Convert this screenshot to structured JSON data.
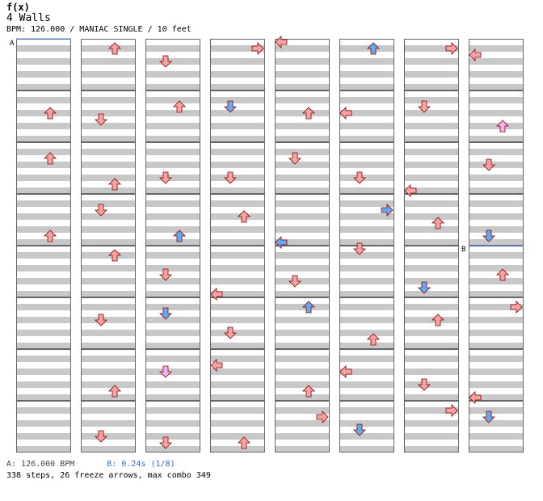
{
  "song": {
    "title": "f(x)",
    "artist": "4 Walls",
    "info": "BPM: 126.000 / MANIAC SINGLE / 10 feet"
  },
  "markers": {
    "a": "A",
    "b": "B"
  },
  "footer": {
    "bpm_a": "A: 126.000 BPM",
    "bpm_b": "B: 0.24s (1/8)",
    "stats": "338 steps, 26 freeze arrows, max combo 349"
  },
  "colors": {
    "stripe": "#c8c8c8",
    "red": "#f4a4a4",
    "blue": "#64aaf0",
    "green": "#6ee86e",
    "pink": "#f0b4f0",
    "freeze": "#c8f0c8",
    "marker_line": "#4a86e8"
  },
  "chart_data": {
    "type": "table",
    "lanes": [
      "left",
      "down",
      "up",
      "right"
    ],
    "columns": 8,
    "measures_per_column": 8,
    "rows_per_measure": 8,
    "arrows": [
      [
        [
          1,
          3,
          2,
          "red"
        ],
        [
          2,
          2,
          2,
          "red"
        ],
        [
          3,
          6,
          2,
          "red"
        ]
      ],
      [
        [
          0,
          1,
          2,
          "red"
        ],
        [
          1,
          4,
          1,
          "red"
        ],
        [
          2,
          6,
          2,
          "red"
        ],
        [
          3,
          2,
          1,
          "red"
        ],
        [
          4,
          1,
          2,
          "red"
        ],
        [
          5,
          3,
          1,
          "red"
        ],
        [
          6,
          6,
          2,
          "red"
        ],
        [
          7,
          5,
          1,
          "red"
        ]
      ],
      [
        [
          0,
          3,
          1,
          "red"
        ],
        [
          1,
          2,
          2,
          "red"
        ],
        [
          2,
          5,
          1,
          "red"
        ],
        [
          3,
          6,
          2,
          "blue"
        ],
        [
          4,
          4,
          1,
          "red"
        ],
        [
          5,
          2,
          1,
          "blue"
        ],
        [
          6,
          3,
          1,
          "pink"
        ],
        [
          7,
          6,
          1,
          "red"
        ]
      ],
      [
        [
          0,
          1,
          3,
          "red"
        ],
        [
          1,
          2,
          1,
          "blue"
        ],
        [
          2,
          5,
          1,
          "red"
        ],
        [
          3,
          3,
          2,
          "red"
        ],
        [
          4,
          7,
          0,
          "red"
        ],
        [
          5,
          5,
          1,
          "red"
        ],
        [
          6,
          2,
          0,
          "red"
        ],
        [
          7,
          6,
          2,
          "red"
        ]
      ],
      [
        [
          0,
          0,
          0,
          "red"
        ],
        [
          1,
          3,
          2,
          "red"
        ],
        [
          2,
          2,
          1,
          "red"
        ],
        [
          3,
          7,
          0,
          "blue"
        ],
        [
          4,
          5,
          1,
          "red"
        ],
        [
          5,
          1,
          2,
          "blue"
        ],
        [
          6,
          6,
          2,
          "red"
        ],
        [
          7,
          2,
          3,
          "red"
        ]
      ],
      [
        [
          0,
          1,
          2,
          "blue"
        ],
        [
          1,
          3,
          0,
          "red"
        ],
        [
          2,
          5,
          1,
          "red"
        ],
        [
          3,
          2,
          3,
          "blue"
        ],
        [
          4,
          0,
          1,
          "red"
        ],
        [
          5,
          6,
          2,
          "red"
        ],
        [
          6,
          3,
          0,
          "red"
        ],
        [
          7,
          4,
          1,
          "blue"
        ]
      ],
      [
        [
          0,
          1,
          3,
          "red"
        ],
        [
          1,
          2,
          1,
          "red"
        ],
        [
          2,
          7,
          0,
          "red"
        ],
        [
          3,
          4,
          2,
          "red"
        ],
        [
          4,
          6,
          1,
          "blue"
        ],
        [
          5,
          3,
          2,
          "red"
        ],
        [
          6,
          5,
          1,
          "red"
        ],
        [
          7,
          1,
          3,
          "red"
        ]
      ],
      [
        [
          0,
          2,
          0,
          "red"
        ],
        [
          1,
          5,
          2,
          "pink"
        ],
        [
          2,
          3,
          1,
          "red"
        ],
        [
          3,
          6,
          1,
          "blue"
        ],
        [
          4,
          4,
          2,
          "red"
        ],
        [
          5,
          1,
          3,
          "red"
        ],
        [
          6,
          7,
          0,
          "red"
        ],
        [
          7,
          2,
          1,
          "blue"
        ]
      ]
    ]
  }
}
